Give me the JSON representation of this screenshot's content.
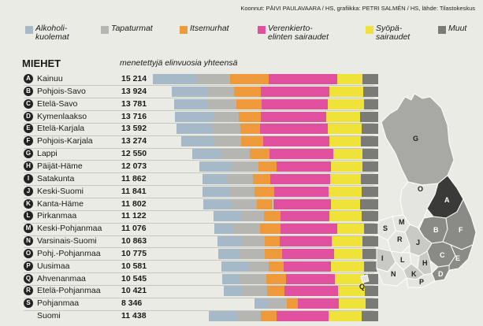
{
  "credit": "Koonnut: PÄIVI PAULAVAARA / HS, grafiikka: PETRI SALMÉN / HS, lähde: Tilastokeskus",
  "colors": {
    "alkoholi": "#a6b9c8",
    "tapaturmat": "#b5b5b2",
    "itsemurhat": "#ee9a3a",
    "verenkierto": "#e0509e",
    "syopa": "#efe33a",
    "muut": "#7a7a76",
    "map_dark": "#3a3a38",
    "map_mid": "#8a8a86",
    "map_light": "#c9c9c5",
    "map_lappi": "#a8a8a4"
  },
  "legend": [
    {
      "key": "alkoholi",
      "label": "Alkoholi-\nkuolemat"
    },
    {
      "key": "tapaturmat",
      "label": "Tapaturmat"
    },
    {
      "key": "itsemurhat",
      "label": "Itsemurhat"
    },
    {
      "key": "verenkierto",
      "label": "Verenkierto-\nelinten sairaudet"
    },
    {
      "key": "syopa",
      "label": "Syöpä-\nsairaudet"
    },
    {
      "key": "muut",
      "label": "Muut"
    }
  ],
  "chart_data": {
    "type": "bar",
    "orientation": "horizontal",
    "stacked": true,
    "title": "MIEHET",
    "subtitle": "menetettyjä elinvuosia yhteensä",
    "series_keys": [
      "alkoholi",
      "tapaturmat",
      "itsemurhat",
      "verenkierto",
      "syopa",
      "muut"
    ],
    "rows": [
      {
        "letter": "A",
        "region": "Kainuu",
        "total": "15 214",
        "value": 15214,
        "parts": [
          2900,
          2300,
          2600,
          4650,
          1700,
          1064
        ]
      },
      {
        "letter": "B",
        "region": "Pohjois-Savo",
        "total": "13 924",
        "value": 13924,
        "parts": [
          2400,
          1800,
          1800,
          4600,
          2300,
          1024
        ]
      },
      {
        "letter": "C",
        "region": "Etelä-Savo",
        "total": "13 781",
        "value": 13781,
        "parts": [
          2300,
          1900,
          1700,
          4500,
          2400,
          981
        ]
      },
      {
        "letter": "D",
        "region": "Kymenlaakso",
        "total": "13 716",
        "value": 13716,
        "parts": [
          2600,
          1700,
          1500,
          4400,
          2300,
          1216
        ]
      },
      {
        "letter": "E",
        "region": "Etelä-Karjala",
        "total": "13 592",
        "value": 13592,
        "parts": [
          2400,
          1900,
          1300,
          4600,
          2300,
          1092
        ]
      },
      {
        "letter": "F",
        "region": "Pohjois-Karjala",
        "total": "13 274",
        "value": 13274,
        "parts": [
          2200,
          1800,
          1500,
          4500,
          2100,
          1174
        ]
      },
      {
        "letter": "G",
        "region": "Lappi",
        "total": "12 550",
        "value": 12550,
        "parts": [
          2000,
          1900,
          1300,
          4300,
          2000,
          1050
        ]
      },
      {
        "letter": "H",
        "region": "Päijät-Häme",
        "total": "12 073",
        "value": 12073,
        "parts": [
          2200,
          1800,
          1200,
          3700,
          2100,
          1073
        ]
      },
      {
        "letter": "I",
        "region": "Satakunta",
        "total": "11 862",
        "value": 11862,
        "parts": [
          1600,
          1800,
          1200,
          4000,
          2100,
          1162
        ]
      },
      {
        "letter": "J",
        "region": "Keski-Suomi",
        "total": "11 841",
        "value": 11841,
        "parts": [
          1800,
          1700,
          1300,
          3700,
          2200,
          1141
        ]
      },
      {
        "letter": "K",
        "region": "Kanta-Häme",
        "total": "11 802",
        "value": 11802,
        "parts": [
          1900,
          1700,
          1100,
          3900,
          2000,
          1202
        ]
      },
      {
        "letter": "L",
        "region": "Pirkanmaa",
        "total": "11 122",
        "value": 11122,
        "parts": [
          1800,
          1600,
          1100,
          3300,
          2200,
          1122
        ]
      },
      {
        "letter": "M",
        "region": "Keski-Pohjanmaa",
        "total": "11 076",
        "value": 11076,
        "parts": [
          1300,
          1800,
          1400,
          3800,
          1800,
          976
        ]
      },
      {
        "letter": "N",
        "region": "Varsinais-Suomi",
        "total": "10 863",
        "value": 10863,
        "parts": [
          1700,
          1500,
          1000,
          3500,
          2100,
          1063
        ]
      },
      {
        "letter": "O",
        "region": "Pohj.-Pohjanmaa",
        "total": "10 775",
        "value": 10775,
        "parts": [
          1400,
          1700,
          1200,
          3500,
          1900,
          1075
        ]
      },
      {
        "letter": "P",
        "region": "Uusimaa",
        "total": "10 581",
        "value": 10581,
        "parts": [
          1800,
          1400,
          1000,
          3200,
          2200,
          981
        ]
      },
      {
        "letter": "Q",
        "region": "Ahvenanmaa",
        "total": "10 545",
        "value": 10545,
        "parts": [
          1200,
          1800,
          1300,
          3300,
          2000,
          945
        ]
      },
      {
        "letter": "R",
        "region": "Etelä-Pohjanmaa",
        "total": "10 421",
        "value": 10421,
        "parts": [
          1200,
          1700,
          1200,
          3600,
          1800,
          921
        ]
      },
      {
        "letter": "S",
        "region": "Pohjanmaa",
        "total": "8 346",
        "value": 8346,
        "parts": [
          900,
          1300,
          700,
          2800,
          1800,
          846
        ]
      },
      {
        "letter": "",
        "region": "Suomi",
        "total": "11 438",
        "value": 11438,
        "parts": [
          1900,
          1600,
          1100,
          3500,
          2200,
          1138
        ]
      }
    ]
  },
  "map": {
    "labels": [
      "G",
      "A",
      "B",
      "C",
      "D",
      "E",
      "F",
      "H",
      "I",
      "J",
      "K",
      "L",
      "M",
      "N",
      "O",
      "P",
      "Q",
      "R",
      "S"
    ]
  }
}
